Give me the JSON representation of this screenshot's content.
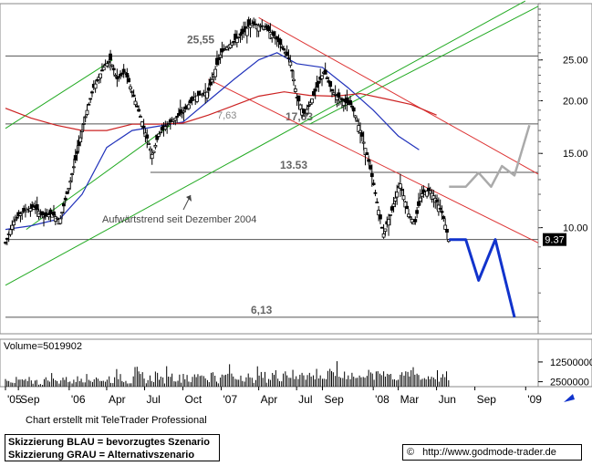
{
  "chart_data": {
    "type": "candlestick",
    "title": "",
    "price_axis": {
      "scale": "log",
      "range": [
        5.6,
        34
      ],
      "ticks": [
        "25.00",
        "20.00",
        "15.00",
        "10.00"
      ],
      "tick_values": [
        25,
        20,
        15,
        10
      ]
    },
    "volume_axis": {
      "range": [
        0,
        24000000
      ],
      "ticks": [
        "12500000",
        "2500000"
      ],
      "tick_values": [
        12500000,
        2500000
      ]
    },
    "volume_label": "Volume=5019902",
    "last_price_label": "9.37",
    "last_price": 9.37,
    "x_axis": {
      "range": [
        "2005-08-01",
        "2009-01-31"
      ],
      "ticks": [
        {
          "label": "'05",
          "date": "2005-08-01"
        },
        {
          "label": "Sep",
          "date": "2005-09-01"
        },
        {
          "label": "'06",
          "date": "2006-01-01"
        },
        {
          "label": "Apr",
          "date": "2006-04-01"
        },
        {
          "label": "Jul",
          "date": "2006-07-01"
        },
        {
          "label": "Oct",
          "date": "2006-10-01"
        },
        {
          "label": "'07",
          "date": "2007-01-01"
        },
        {
          "label": "Apr",
          "date": "2007-04-01"
        },
        {
          "label": "Jul",
          "date": "2007-07-01"
        },
        {
          "label": "Sep",
          "date": "2007-09-01"
        },
        {
          "label": "'08",
          "date": "2008-01-01"
        },
        {
          "label": "Mar",
          "date": "2008-03-01"
        },
        {
          "label": "Jun",
          "date": "2008-06-01"
        },
        {
          "label": "Sep",
          "date": "2008-09-01"
        },
        {
          "label": "'09",
          "date": "2009-01-01"
        }
      ]
    },
    "price_path": [
      [
        "2005-08-01",
        9.2
      ],
      [
        "2005-08-20",
        10.3
      ],
      [
        "2005-09-10",
        10.9
      ],
      [
        "2005-10-10",
        11.2
      ],
      [
        "2005-11-01",
        10.6
      ],
      [
        "2005-11-20",
        10.8
      ],
      [
        "2005-12-10",
        10.4
      ],
      [
        "2006-01-01",
        12.5
      ],
      [
        "2006-01-20",
        15.0
      ],
      [
        "2006-02-10",
        18.5
      ],
      [
        "2006-03-01",
        21.5
      ],
      [
        "2006-03-25",
        24.0
      ],
      [
        "2006-04-10",
        25.0
      ],
      [
        "2006-04-25",
        22.5
      ],
      [
        "2006-05-15",
        23.5
      ],
      [
        "2006-06-01",
        21.0
      ],
      [
        "2006-06-20",
        18.5
      ],
      [
        "2006-07-01",
        17.0
      ],
      [
        "2006-07-20",
        14.8
      ],
      [
        "2006-08-05",
        16.8
      ],
      [
        "2006-09-01",
        17.8
      ],
      [
        "2006-10-01",
        18.8
      ],
      [
        "2006-11-01",
        20.5
      ],
      [
        "2006-12-01",
        21.0
      ],
      [
        "2007-01-01",
        26.0
      ],
      [
        "2007-02-15",
        28.5
      ],
      [
        "2007-03-15",
        30.5
      ],
      [
        "2007-04-15",
        30.0
      ],
      [
        "2007-05-15",
        28.0
      ],
      [
        "2007-06-15",
        25.0
      ],
      [
        "2007-07-01",
        20.5
      ],
      [
        "2007-07-20",
        18.5
      ],
      [
        "2007-08-10",
        20.5
      ],
      [
        "2007-09-05",
        23.5
      ],
      [
        "2007-09-25",
        21.0
      ],
      [
        "2007-10-20",
        20.0
      ],
      [
        "2007-11-10",
        19.5
      ],
      [
        "2007-12-01",
        17.0
      ],
      [
        "2007-12-20",
        14.5
      ],
      [
        "2008-01-10",
        11.5
      ],
      [
        "2008-01-25",
        9.6
      ],
      [
        "2008-02-15",
        11.0
      ],
      [
        "2008-03-05",
        12.8
      ],
      [
        "2008-03-25",
        10.8
      ],
      [
        "2008-04-10",
        10.2
      ],
      [
        "2008-04-25",
        12.0
      ],
      [
        "2008-05-15",
        12.3
      ],
      [
        "2008-05-30",
        11.7
      ],
      [
        "2008-06-15",
        10.8
      ],
      [
        "2008-06-30",
        9.37
      ]
    ],
    "moving_averages": [
      {
        "name": "",
        "color": "#2233bb",
        "points": [
          [
            "2005-08-01",
            9.9
          ],
          [
            "2005-10-01",
            10.1
          ],
          [
            "2005-12-10",
            10.5
          ],
          [
            "2006-02-01",
            12.0
          ],
          [
            "2006-04-01",
            15.5
          ],
          [
            "2006-06-01",
            17.0
          ],
          [
            "2006-08-01",
            17.4
          ],
          [
            "2006-10-01",
            17.8
          ],
          [
            "2006-12-01",
            20.0
          ],
          [
            "2007-02-01",
            22.5
          ],
          [
            "2007-04-01",
            25.0
          ],
          [
            "2007-05-15",
            26.0
          ],
          [
            "2007-07-01",
            24.5
          ],
          [
            "2007-09-01",
            24.0
          ],
          [
            "2007-11-01",
            21.5
          ],
          [
            "2008-01-01",
            19.0
          ],
          [
            "2008-03-01",
            16.5
          ],
          [
            "2008-04-20",
            15.3
          ]
        ]
      },
      {
        "name": "",
        "color": "#cc2222",
        "points": [
          [
            "2005-08-01",
            19.2
          ],
          [
            "2005-10-01",
            18.2
          ],
          [
            "2005-12-01",
            17.5
          ],
          [
            "2006-02-01",
            17.0
          ],
          [
            "2006-04-01",
            17.0
          ],
          [
            "2006-06-01",
            17.6
          ],
          [
            "2006-08-01",
            17.6
          ],
          [
            "2006-10-01",
            17.7
          ],
          [
            "2006-12-01",
            18.5
          ],
          [
            "2007-02-01",
            19.5
          ],
          [
            "2007-04-01",
            20.5
          ],
          [
            "2007-06-01",
            21.0
          ],
          [
            "2007-08-01",
            20.6
          ],
          [
            "2007-10-01",
            20.5
          ],
          [
            "2007-12-01",
            20.8
          ],
          [
            "2008-02-01",
            20.2
          ],
          [
            "2008-04-01",
            19.6
          ],
          [
            "2008-06-01",
            18.5
          ]
        ]
      }
    ],
    "channels": [
      {
        "color": "#22aa22",
        "points": [
          [
            "2005-08-01",
            17.2
          ],
          [
            "2006-04-15",
            25.0
          ]
        ]
      },
      {
        "color": "#22aa22",
        "points": [
          [
            "2005-08-01",
            7.3
          ],
          [
            "2008-12-31",
            34.5
          ]
        ]
      },
      {
        "color": "#22aa22",
        "points": [
          [
            "2005-09-20",
            9.9
          ],
          [
            "2006-09-01",
            17.5
          ]
        ]
      },
      {
        "color": "#22aa22",
        "points": [
          [
            "2007-08-01",
            17.6
          ],
          [
            "2009-01-31",
            33.5
          ]
        ]
      },
      {
        "color": "#dd3333",
        "points": [
          [
            "2007-04-01",
            31.5
          ],
          [
            "2009-01-31",
            13.4
          ]
        ]
      },
      {
        "color": "#dd3333",
        "points": [
          [
            "2006-12-01",
            22.5
          ],
          [
            "2009-01-31",
            9.2
          ]
        ]
      }
    ],
    "horizontal_levels": [
      {
        "label": "25,55",
        "value": 25.55,
        "from": "2005-08-01"
      },
      {
        "label": "17,63",
        "value": 17.63,
        "from": "2005-08-01"
      },
      {
        "label": "13.53",
        "value": 13.53,
        "from": "2006-07-15"
      },
      {
        "label": "9.37",
        "value": 9.37,
        "from": "2005-08-01"
      },
      {
        "label": "6,13",
        "value": 6.13,
        "from": "2005-08-01"
      }
    ],
    "label_17_63_partial": "7,63",
    "annotation": "Aufwärtstrend seit Dezember 2004",
    "scenario_blue": {
      "color": "#1133cc",
      "points": [
        [
          "2008-07-01",
          9.37
        ],
        [
          "2008-08-10",
          9.37
        ],
        [
          "2008-09-10",
          7.5
        ],
        [
          "2008-10-20",
          9.37
        ],
        [
          "2008-12-05",
          6.13
        ]
      ]
    },
    "scenario_grey": {
      "color": "#aaaaaa",
      "points": [
        [
          "2008-07-01",
          12.5
        ],
        [
          "2008-08-10",
          12.5
        ],
        [
          "2008-09-10",
          13.5
        ],
        [
          "2008-10-10",
          12.5
        ],
        [
          "2008-11-05",
          14.0
        ],
        [
          "2008-12-05",
          13.3
        ],
        [
          "2009-01-10",
          17.5
        ]
      ]
    },
    "volume_profile": [
      3,
      2,
      4,
      3,
      5,
      3,
      2,
      4,
      6,
      3,
      5,
      4,
      3,
      7,
      5,
      4,
      6,
      3,
      5,
      4,
      7,
      5,
      3,
      8,
      6,
      4,
      5,
      7,
      4,
      9,
      6,
      5,
      7,
      4,
      6,
      8,
      5,
      7,
      4,
      6,
      9,
      5,
      7,
      6,
      4,
      8,
      6,
      5,
      7,
      6,
      9,
      7,
      5,
      10,
      7,
      6,
      8,
      5,
      7,
      10,
      6,
      8,
      7,
      5,
      9,
      7,
      6,
      8,
      10,
      7,
      5,
      8,
      6,
      9,
      7,
      5,
      6,
      7,
      5,
      6
    ]
  },
  "footer": {
    "credit": "Chart erstellt mit TeleTrader Professional",
    "legend_blue": "Skizzierung BLAU = bevorzugtes Szenario",
    "legend_grey": "Skizzierung GRAU = Alternativszenario",
    "copyright_symbol": "©",
    "source_url": "http://www.godmode-trader.de"
  }
}
